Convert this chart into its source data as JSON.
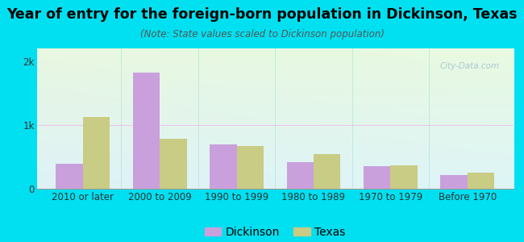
{
  "title": "Year of entry for the foreign-born population in Dickinson, Texas",
  "subtitle": "(Note: State values scaled to Dickinson population)",
  "categories": [
    "2010 or later",
    "2000 to 2009",
    "1990 to 1999",
    "1980 to 1989",
    "1970 to 1979",
    "Before 1970"
  ],
  "dickinson_values": [
    390,
    1820,
    700,
    420,
    360,
    210
  ],
  "texas_values": [
    1130,
    790,
    670,
    550,
    370,
    255
  ],
  "dickinson_color": "#c9a0dc",
  "texas_color": "#c8cc84",
  "background_outer": "#00e0f0",
  "ytick_labels": [
    "0",
    "1k",
    "2k"
  ],
  "ytick_values": [
    0,
    1000,
    2000
  ],
  "ylim": [
    0,
    2200
  ],
  "bar_width": 0.35,
  "title_fontsize": 12.5,
  "subtitle_fontsize": 8.5,
  "legend_fontsize": 10,
  "tick_fontsize": 8.5,
  "gridline_color": "#f0c8e8",
  "watermark_text": "City-Data.com",
  "watermark_color": "#a0c0cc"
}
